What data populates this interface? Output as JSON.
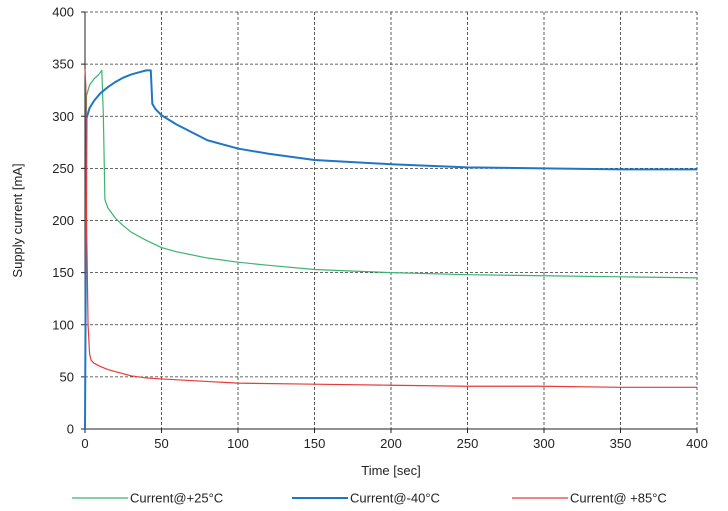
{
  "chart_data": {
    "type": "line",
    "xlabel": "Time [sec]",
    "ylabel": "Supply current [mA]",
    "xlim": [
      0,
      400
    ],
    "ylim": [
      0,
      400
    ],
    "xticks": [
      0,
      50,
      100,
      150,
      200,
      250,
      300,
      350,
      400
    ],
    "yticks": [
      0,
      50,
      100,
      150,
      200,
      250,
      300,
      350,
      400
    ],
    "grid": true,
    "legend_position": "bottom",
    "series": [
      {
        "name": "Current@+25°C",
        "color": "#3cb371",
        "x": [
          0,
          1,
          3,
          6,
          9,
          11,
          12,
          13,
          15,
          20,
          25,
          30,
          40,
          50,
          60,
          80,
          100,
          120,
          150,
          200,
          250,
          300,
          350,
          400
        ],
        "y": [
          0,
          320,
          330,
          336,
          340,
          344,
          300,
          220,
          212,
          202,
          195,
          189,
          181,
          174,
          170,
          164,
          160,
          157,
          153,
          150,
          148,
          147,
          146,
          145
        ]
      },
      {
        "name": "Current@-40°C",
        "color": "#1f77c4",
        "x": [
          0,
          1,
          3,
          6,
          10,
          15,
          20,
          25,
          30,
          35,
          40,
          43,
          44,
          46,
          50,
          60,
          80,
          100,
          120,
          150,
          200,
          250,
          300,
          350,
          400
        ],
        "y": [
          0,
          298,
          308,
          315,
          322,
          328,
          333,
          337,
          340,
          342,
          344,
          344,
          312,
          307,
          301,
          292,
          277,
          269,
          264,
          258,
          254,
          251,
          250,
          249,
          249
        ]
      },
      {
        "name": "Current@ +85°C",
        "color": "#e83a3a",
        "x": [
          0,
          0.5,
          1,
          2,
          3,
          4,
          6,
          10,
          15,
          20,
          30,
          40,
          50,
          75,
          100,
          150,
          200,
          250,
          300,
          350,
          400
        ],
        "y": [
          345,
          330,
          200,
          100,
          72,
          66,
          63,
          60,
          57,
          55,
          51,
          49,
          48,
          46,
          44,
          43,
          42,
          41,
          41,
          40,
          40
        ]
      }
    ]
  }
}
